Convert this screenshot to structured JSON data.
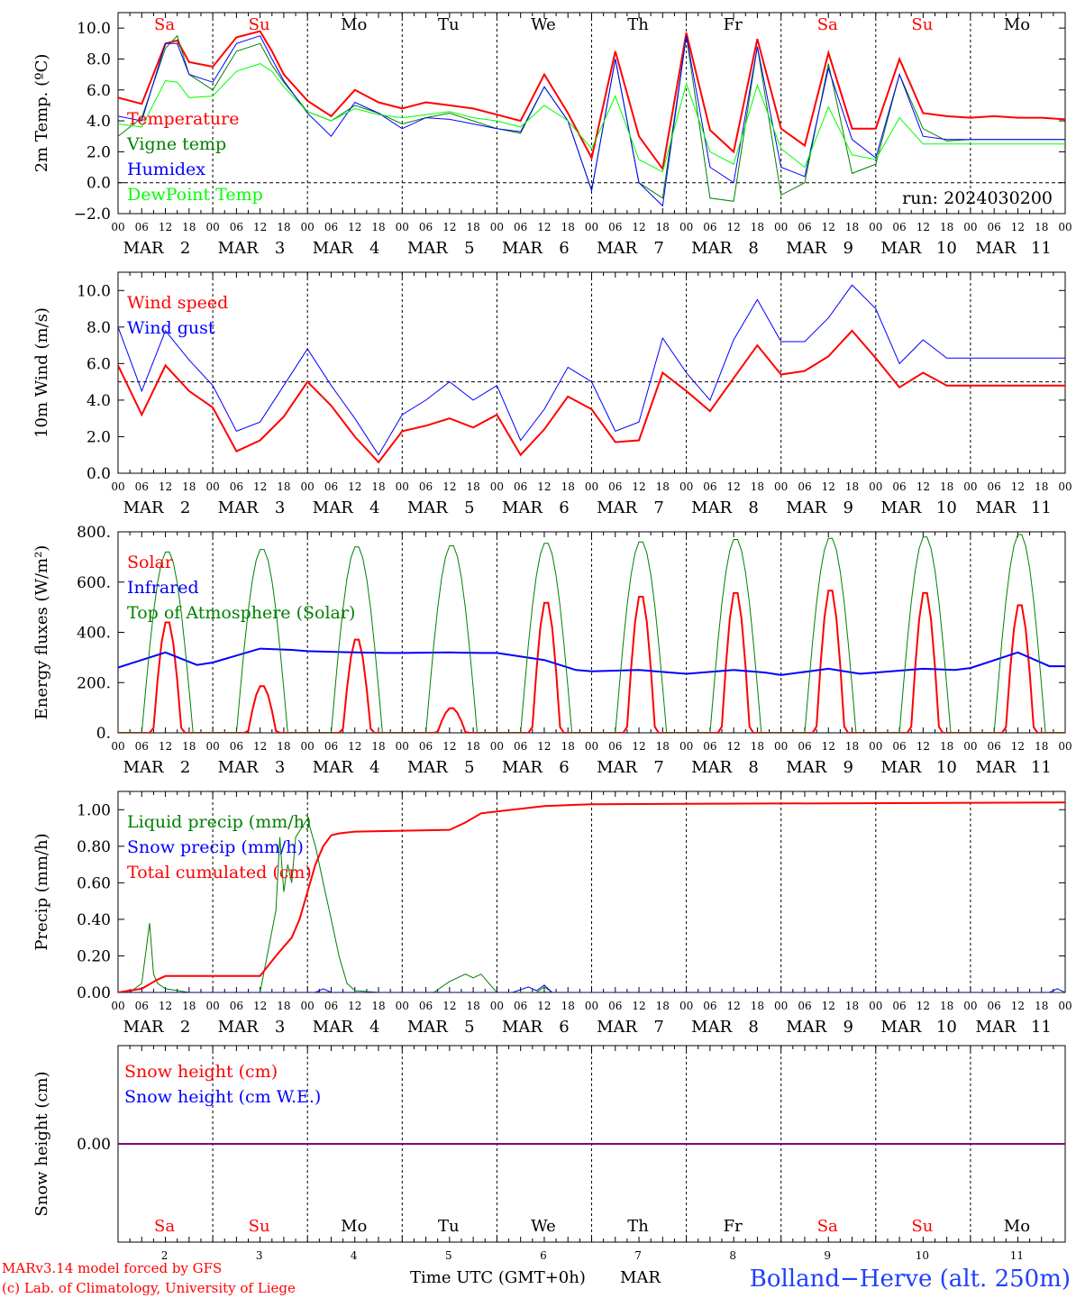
{
  "days": [
    {
      "abbr": "Sa",
      "date": "2",
      "color": "#ff0000"
    },
    {
      "abbr": "Su",
      "date": "3",
      "color": "#ff0000"
    },
    {
      "abbr": "Mo",
      "date": "4",
      "color": "#000000"
    },
    {
      "abbr": "Tu",
      "date": "5",
      "color": "#000000"
    },
    {
      "abbr": "We",
      "date": "6",
      "color": "#000000"
    },
    {
      "abbr": "Th",
      "date": "7",
      "color": "#000000"
    },
    {
      "abbr": "Fr",
      "date": "8",
      "color": "#000000"
    },
    {
      "abbr": "Sa",
      "date": "9",
      "color": "#ff0000"
    },
    {
      "abbr": "Su",
      "date": "10",
      "color": "#ff0000"
    },
    {
      "abbr": "Mo",
      "date": "11",
      "color": "#000000"
    }
  ],
  "month": "MAR",
  "hour_ticks": [
    "00",
    "06",
    "12",
    "18"
  ],
  "final_tick": "00",
  "footer": {
    "model_line": "MARv3.14 model forced by GFS",
    "copyright_line": "(c) Lab. of Climatology, University of Liege",
    "xlabel": "Time UTC (GMT+0h)",
    "month_label": "MAR",
    "station": "Bolland−Herve (alt. 250m)"
  },
  "chart_data": [
    {
      "type": "line",
      "ylabel": "2m Temp. (ºC)",
      "ylim": [
        -2,
        11
      ],
      "yticks": [
        "−2.0",
        "0.0",
        "2.0",
        "4.0",
        "6.0",
        "8.0",
        "10.0"
      ],
      "ytick_values": [
        -2,
        0,
        2,
        4,
        6,
        8,
        10
      ],
      "dashed_ref": 0,
      "annotation": "run: 2024030200",
      "x_hours": [
        0,
        6,
        12,
        15,
        18,
        24,
        30,
        36,
        39,
        42,
        48,
        54,
        60,
        66,
        72,
        78,
        84,
        90,
        96,
        102,
        108,
        114,
        120,
        126,
        132,
        138,
        144,
        150,
        156,
        162,
        168,
        174,
        180,
        186,
        192,
        198,
        204,
        210,
        216,
        222,
        228,
        234,
        240
      ],
      "series": [
        {
          "name": "Temperature",
          "color": "#ff0000",
          "width": 2,
          "values": [
            5.5,
            5.1,
            9.0,
            9.2,
            7.8,
            7.5,
            9.4,
            9.8,
            8.5,
            7.0,
            5.3,
            4.3,
            6.0,
            5.2,
            4.8,
            5.2,
            5.0,
            4.8,
            4.4,
            4.0,
            7.0,
            4.5,
            1.6,
            8.5,
            3.0,
            0.9,
            9.7,
            3.4,
            2.0,
            9.3,
            3.5,
            2.4,
            8.4,
            3.5,
            3.5,
            8.0,
            4.5,
            4.3,
            4.2,
            4.3,
            4.2,
            4.2,
            4.1
          ]
        },
        {
          "name": "Vigne temp",
          "color": "#008000",
          "width": 1,
          "values": [
            3.0,
            4.2,
            8.7,
            9.5,
            7.0,
            6.0,
            8.5,
            9.0,
            7.6,
            6.5,
            4.6,
            4.0,
            5.0,
            4.5,
            3.8,
            4.2,
            4.5,
            4.0,
            3.5,
            3.2,
            6.2,
            4.0,
            -0.5,
            8.0,
            0.0,
            -1.0,
            9.5,
            -1.0,
            -1.2,
            8.8,
            -0.8,
            0.0,
            7.7,
            0.6,
            1.2,
            7.0,
            3.5,
            2.7,
            2.8,
            2.8,
            2.8,
            2.8,
            2.8
          ]
        },
        {
          "name": "Humidex",
          "color": "#0000ff",
          "width": 1,
          "values": [
            4.3,
            4.0,
            9.0,
            9.0,
            7.0,
            6.5,
            9.0,
            9.5,
            8.0,
            6.6,
            4.5,
            3.0,
            5.2,
            4.5,
            3.5,
            4.2,
            4.1,
            3.8,
            3.5,
            3.3,
            6.2,
            4.0,
            -0.5,
            8.0,
            0.0,
            -1.5,
            9.5,
            1.0,
            0.0,
            8.8,
            1.0,
            0.4,
            7.4,
            2.8,
            1.6,
            7.0,
            3.0,
            2.8,
            2.8,
            2.8,
            2.8,
            2.8,
            2.8
          ]
        },
        {
          "name": "DewPoint Temp",
          "color": "#00ff00",
          "width": 1,
          "values": [
            3.8,
            3.6,
            6.6,
            6.5,
            5.5,
            5.6,
            7.2,
            7.7,
            7.2,
            6.2,
            4.6,
            4.0,
            4.8,
            4.4,
            4.2,
            4.4,
            4.6,
            4.2,
            4.0,
            3.6,
            5.0,
            4.0,
            2.2,
            5.6,
            1.5,
            0.7,
            6.4,
            2.0,
            1.2,
            6.3,
            2.2,
            1.0,
            4.9,
            1.8,
            1.5,
            4.2,
            2.5,
            2.5,
            2.5,
            2.5,
            2.5,
            2.5,
            2.5
          ]
        }
      ]
    },
    {
      "type": "line",
      "ylabel": "10m Wind (m/s)",
      "ylim": [
        0,
        11
      ],
      "yticks": [
        "0.0",
        "2.0",
        "4.0",
        "6.0",
        "8.0",
        "10.0"
      ],
      "ytick_values": [
        0,
        2,
        4,
        6,
        8,
        10
      ],
      "dashed_ref": 5,
      "x_hours": [
        0,
        6,
        12,
        18,
        24,
        30,
        36,
        42,
        48,
        54,
        60,
        66,
        72,
        78,
        84,
        90,
        96,
        102,
        108,
        114,
        120,
        126,
        132,
        138,
        144,
        150,
        156,
        162,
        168,
        174,
        180,
        186,
        192,
        198,
        204,
        210,
        216,
        222,
        228,
        234,
        240
      ],
      "series": [
        {
          "name": "Wind speed",
          "color": "#ff0000",
          "width": 2,
          "values": [
            5.9,
            3.2,
            5.9,
            4.5,
            3.6,
            1.2,
            1.8,
            3.1,
            5.0,
            3.7,
            2.0,
            0.6,
            2.3,
            2.6,
            3.0,
            2.5,
            3.2,
            1.0,
            2.4,
            4.2,
            3.5,
            1.7,
            1.8,
            5.5,
            4.5,
            3.4,
            5.2,
            7.0,
            5.4,
            5.6,
            6.4,
            7.8,
            6.3,
            4.7,
            5.5,
            4.8,
            4.8,
            4.8,
            4.8,
            4.8,
            4.8
          ]
        },
        {
          "name": "Wind gust",
          "color": "#0000ff",
          "width": 1,
          "values": [
            8.0,
            4.5,
            7.8,
            6.2,
            4.8,
            2.3,
            2.8,
            4.8,
            6.8,
            4.8,
            3.0,
            1.0,
            3.2,
            4.0,
            5.0,
            4.0,
            4.8,
            1.8,
            3.5,
            5.8,
            5.0,
            2.3,
            2.8,
            7.4,
            5.5,
            4.0,
            7.3,
            9.5,
            7.2,
            7.2,
            8.5,
            10.3,
            9.0,
            6.0,
            7.3,
            6.3,
            6.3,
            6.3,
            6.3,
            6.3,
            6.3
          ]
        }
      ]
    },
    {
      "type": "line",
      "ylabel": "Energy fluxes (W/m²)",
      "ylim": [
        0,
        800
      ],
      "yticks": [
        "0.",
        "200.",
        "400.",
        "600.",
        "800."
      ],
      "ytick_values": [
        0,
        200,
        400,
        600,
        800
      ],
      "dashed_ref": null,
      "series": [
        {
          "name": "Solar",
          "color": "#ff0000",
          "width": 2,
          "day_peaks": [
            450,
            190,
            380,
            100,
            530,
            555,
            570,
            580,
            570,
            520
          ]
        },
        {
          "name": "Infrared",
          "color": "#0000ff",
          "width": 2,
          "daily_values": [
            [
              260,
              320,
              270
            ],
            [
              280,
              335,
              330
            ],
            [
              325,
              320,
              318
            ],
            [
              318,
              320,
              318
            ],
            [
              318,
              290,
              250
            ],
            [
              245,
              250,
              240
            ],
            [
              235,
              250,
              240
            ],
            [
              230,
              255,
              235
            ],
            [
              240,
              255,
              250
            ],
            [
              258,
              320,
              265
            ]
          ]
        },
        {
          "name": "Top of Atmosphere (Solar)",
          "color": "#008000",
          "width": 1,
          "day_peaks": [
            725,
            735,
            745,
            750,
            760,
            765,
            775,
            780,
            785,
            795
          ]
        }
      ]
    },
    {
      "type": "line",
      "ylabel": "Precip (mm/h)",
      "ylim": [
        0,
        1.1
      ],
      "yticks": [
        "0.00",
        "0.20",
        "0.40",
        "0.60",
        "0.80",
        "1.00"
      ],
      "ytick_values": [
        0,
        0.2,
        0.4,
        0.6,
        0.8,
        1.0
      ],
      "dashed_ref": null,
      "series": [
        {
          "name": "Liquid precip (mm/h)",
          "color": "#008000",
          "width": 1,
          "x_hours": [
            0,
            3,
            6,
            8,
            9,
            10,
            12,
            18,
            36,
            40,
            41,
            42,
            43,
            44,
            45,
            48,
            50,
            52,
            54,
            56,
            58,
            60,
            66,
            80,
            84,
            86,
            88,
            90,
            92,
            94,
            96,
            106,
            108,
            110,
            240
          ],
          "values": [
            0,
            0,
            0.05,
            0.38,
            0.1,
            0.05,
            0.02,
            0,
            0,
            0.45,
            0.85,
            0.55,
            0.7,
            0.6,
            0.85,
            0.95,
            0.8,
            0.6,
            0.4,
            0.2,
            0.05,
            0.01,
            0,
            0,
            0.06,
            0.08,
            0.1,
            0.08,
            0.1,
            0.05,
            0,
            0,
            0.03,
            0,
            0
          ]
        },
        {
          "name": "Snow precip (mm/h)",
          "color": "#0000ff",
          "width": 1,
          "x_hours": [
            0,
            50,
            52,
            54,
            100,
            104,
            106,
            108,
            110,
            236,
            238,
            240
          ],
          "values": [
            0,
            0,
            0.02,
            0,
            0,
            0.03,
            0.01,
            0.04,
            0,
            0,
            0.02,
            0
          ]
        },
        {
          "name": "Total cumulated (cm)",
          "color": "#ff0000",
          "width": 2,
          "x_hours": [
            0,
            6,
            10,
            12,
            24,
            36,
            40,
            42,
            44,
            46,
            48,
            50,
            52,
            54,
            56,
            60,
            84,
            88,
            92,
            96,
            100,
            108,
            120,
            240
          ],
          "values": [
            0,
            0.02,
            0.07,
            0.09,
            0.09,
            0.09,
            0.2,
            0.25,
            0.3,
            0.4,
            0.55,
            0.7,
            0.8,
            0.86,
            0.87,
            0.88,
            0.89,
            0.93,
            0.98,
            0.99,
            1.0,
            1.02,
            1.03,
            1.04
          ]
        }
      ]
    },
    {
      "type": "line",
      "ylabel": "Snow height (cm)",
      "ylim": [
        -1,
        1
      ],
      "yticks": [
        "0.00"
      ],
      "ytick_values": [
        0
      ],
      "dashed_ref": null,
      "series": [
        {
          "name": "Snow height (cm)",
          "color": "#ff0000",
          "width": 1,
          "x_hours": [
            0,
            240
          ],
          "values": [
            0,
            0
          ]
        },
        {
          "name": "Snow height (cm W.E.)",
          "color": "#0000ff",
          "width": 1,
          "x_hours": [
            0,
            240
          ],
          "values": [
            0,
            0
          ]
        }
      ]
    }
  ]
}
